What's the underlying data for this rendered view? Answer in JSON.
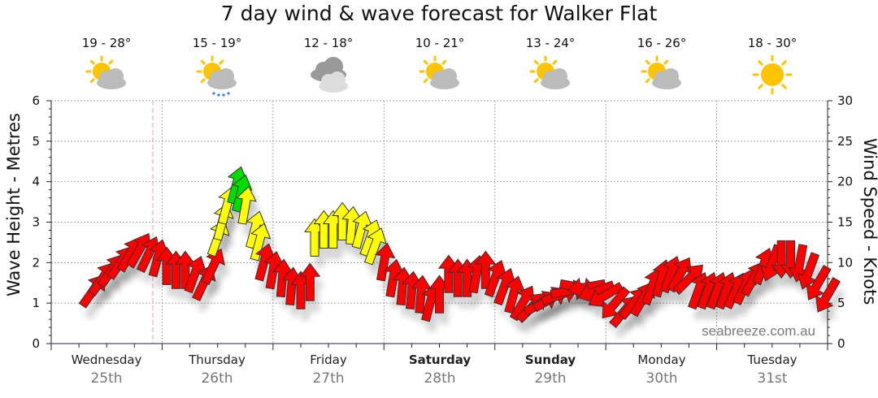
{
  "title": "7 day wind & wave forecast for Walker Flat",
  "forecast": [
    {
      "temp": "19 - 28°",
      "icon": "partly-cloudy-icon"
    },
    {
      "temp": "15 - 19°",
      "icon": "partly-cloudy-showers-icon"
    },
    {
      "temp": "12 - 18°",
      "icon": "cloudy-icon"
    },
    {
      "temp": "10 - 21°",
      "icon": "partly-cloudy-icon"
    },
    {
      "temp": "13 - 24°",
      "icon": "partly-cloudy-icon"
    },
    {
      "temp": "16 - 26°",
      "icon": "partly-cloudy-icon"
    },
    {
      "temp": "18 - 30°",
      "icon": "sunny-icon"
    }
  ],
  "days": [
    {
      "name": "Wednesday",
      "date": "25th",
      "bold": false
    },
    {
      "name": "Thursday",
      "date": "26th",
      "bold": false
    },
    {
      "name": "Friday",
      "date": "27th",
      "bold": false
    },
    {
      "name": "Saturday",
      "date": "28th",
      "bold": true
    },
    {
      "name": "Sunday",
      "date": "29th",
      "bold": true
    },
    {
      "name": "Monday",
      "date": "30th",
      "bold": false
    },
    {
      "name": "Tuesday",
      "date": "31st",
      "bold": false
    }
  ],
  "watermark": "seabreeze.com.au",
  "colors": {
    "calm": "#ff0000",
    "moderate": "#ffff00",
    "strong": "#00dd00"
  },
  "chart_data": {
    "type": "scatter",
    "title": "7 day wind & wave forecast for Walker Flat",
    "ylabel": "Wave Height - Metres",
    "y2label": "Wind Speed - Knots",
    "ylim": [
      0,
      6
    ],
    "y2lim": [
      0,
      30
    ],
    "yticks": [
      "0",
      "1",
      "2",
      "3",
      "4",
      "5",
      "6"
    ],
    "y2ticks": [
      "0",
      "5",
      "10",
      "15",
      "20",
      "25",
      "30"
    ],
    "x_unit": "hours from Wednesday 00:00",
    "xlim": [
      0,
      168
    ],
    "now_hour": 22,
    "grid": true,
    "wind": [
      {
        "h": 9,
        "kn": 6.5,
        "dir": 35
      },
      {
        "h": 11,
        "kn": 8,
        "dir": 35
      },
      {
        "h": 13,
        "kn": 9,
        "dir": 35
      },
      {
        "h": 15,
        "kn": 10,
        "dir": 35
      },
      {
        "h": 17,
        "kn": 11,
        "dir": 30
      },
      {
        "h": 19,
        "kn": 11.5,
        "dir": 30
      },
      {
        "h": 21,
        "kn": 11,
        "dir": 25
      },
      {
        "h": 23,
        "kn": 10.5,
        "dir": 15
      },
      {
        "h": 25,
        "kn": 9.5,
        "dir": 0
      },
      {
        "h": 27,
        "kn": 9,
        "dir": 0
      },
      {
        "h": 29,
        "kn": 9,
        "dir": 0
      },
      {
        "h": 31,
        "kn": 8.5,
        "dir": 20
      },
      {
        "h": 33,
        "kn": 7.5,
        "dir": 25
      },
      {
        "h": 35,
        "kn": 9.5,
        "dir": 25
      },
      {
        "h": 36,
        "kn": 13,
        "dir": 20
      },
      {
        "h": 37,
        "kn": 15,
        "dir": 15
      },
      {
        "h": 38,
        "kn": 17,
        "dir": 15
      },
      {
        "h": 40,
        "kn": 19.5,
        "dir": 15
      },
      {
        "h": 41,
        "kn": 18.5,
        "dir": 15
      },
      {
        "h": 42,
        "kn": 17,
        "dir": 10
      },
      {
        "h": 44,
        "kn": 14,
        "dir": 15
      },
      {
        "h": 45,
        "kn": 12.5,
        "dir": 15
      },
      {
        "h": 46,
        "kn": 10,
        "dir": 15
      },
      {
        "h": 48,
        "kn": 9,
        "dir": 10
      },
      {
        "h": 50,
        "kn": 8,
        "dir": 5
      },
      {
        "h": 52,
        "kn": 7,
        "dir": 5
      },
      {
        "h": 54,
        "kn": 6.5,
        "dir": 0
      },
      {
        "h": 56,
        "kn": 7.5,
        "dir": 0
      },
      {
        "h": 57,
        "kn": 13,
        "dir": 0
      },
      {
        "h": 59,
        "kn": 14,
        "dir": 0
      },
      {
        "h": 61,
        "kn": 14,
        "dir": 0
      },
      {
        "h": 63,
        "kn": 15,
        "dir": 0
      },
      {
        "h": 65,
        "kn": 14.5,
        "dir": 5
      },
      {
        "h": 67,
        "kn": 14,
        "dir": 15
      },
      {
        "h": 69,
        "kn": 13,
        "dir": 20
      },
      {
        "h": 70,
        "kn": 12,
        "dir": 20
      },
      {
        "h": 72,
        "kn": 10,
        "dir": 10
      },
      {
        "h": 74,
        "kn": 8,
        "dir": 10
      },
      {
        "h": 76,
        "kn": 7,
        "dir": 5
      },
      {
        "h": 78,
        "kn": 6.5,
        "dir": 5
      },
      {
        "h": 80,
        "kn": 6,
        "dir": 5
      },
      {
        "h": 82,
        "kn": 5,
        "dir": 15
      },
      {
        "h": 84,
        "kn": 6,
        "dir": 0
      },
      {
        "h": 86,
        "kn": 8.5,
        "dir": 0
      },
      {
        "h": 88,
        "kn": 8,
        "dir": 0
      },
      {
        "h": 90,
        "kn": 8,
        "dir": 0
      },
      {
        "h": 92,
        "kn": 8.5,
        "dir": 10
      },
      {
        "h": 94,
        "kn": 9,
        "dir": 0
      },
      {
        "h": 96,
        "kn": 8,
        "dir": 20
      },
      {
        "h": 98,
        "kn": 7,
        "dir": 20
      },
      {
        "h": 100,
        "kn": 6,
        "dir": 15
      },
      {
        "h": 102,
        "kn": 5,
        "dir": 30
      },
      {
        "h": 104,
        "kn": 4.5,
        "dir": 45
      },
      {
        "h": 106,
        "kn": 5,
        "dir": 60
      },
      {
        "h": 108,
        "kn": 5.5,
        "dir": 60
      },
      {
        "h": 110,
        "kn": 6,
        "dir": 70
      },
      {
        "h": 112,
        "kn": 6.5,
        "dir": 80
      },
      {
        "h": 114,
        "kn": 7,
        "dir": 100
      },
      {
        "h": 116,
        "kn": 7,
        "dir": -100
      },
      {
        "h": 118,
        "kn": 6.5,
        "dir": -110
      },
      {
        "h": 120,
        "kn": 6,
        "dir": -120
      },
      {
        "h": 122,
        "kn": 5,
        "dir": -140
      },
      {
        "h": 124,
        "kn": 4,
        "dir": 40
      },
      {
        "h": 126,
        "kn": 5,
        "dir": 40
      },
      {
        "h": 128,
        "kn": 5.5,
        "dir": 30
      },
      {
        "h": 130,
        "kn": 7,
        "dir": 20
      },
      {
        "h": 132,
        "kn": 8,
        "dir": 15
      },
      {
        "h": 134,
        "kn": 8.5,
        "dir": 20
      },
      {
        "h": 136,
        "kn": 8.5,
        "dir": 30
      },
      {
        "h": 138,
        "kn": 8,
        "dir": 45
      },
      {
        "h": 140,
        "kn": 6.5,
        "dir": 20
      },
      {
        "h": 142,
        "kn": 6.5,
        "dir": 20
      },
      {
        "h": 144,
        "kn": 6.5,
        "dir": 20
      },
      {
        "h": 146,
        "kn": 6.5,
        "dir": 20
      },
      {
        "h": 148,
        "kn": 6.5,
        "dir": 25
      },
      {
        "h": 150,
        "kn": 7,
        "dir": 25
      },
      {
        "h": 152,
        "kn": 8,
        "dir": 30
      },
      {
        "h": 154,
        "kn": 9.5,
        "dir": 20
      },
      {
        "h": 156,
        "kn": 10,
        "dir": -160
      },
      {
        "h": 158,
        "kn": 10.5,
        "dir": 180
      },
      {
        "h": 160,
        "kn": 10.5,
        "dir": 180
      },
      {
        "h": 162,
        "kn": 10,
        "dir": -170
      },
      {
        "h": 164,
        "kn": 9,
        "dir": -160
      },
      {
        "h": 166,
        "kn": 7.5,
        "dir": -150
      },
      {
        "h": 168,
        "kn": 6,
        "dir": -150
      }
    ],
    "color_thresholds_knots": {
      "moderate": 12,
      "strong": 18
    }
  }
}
